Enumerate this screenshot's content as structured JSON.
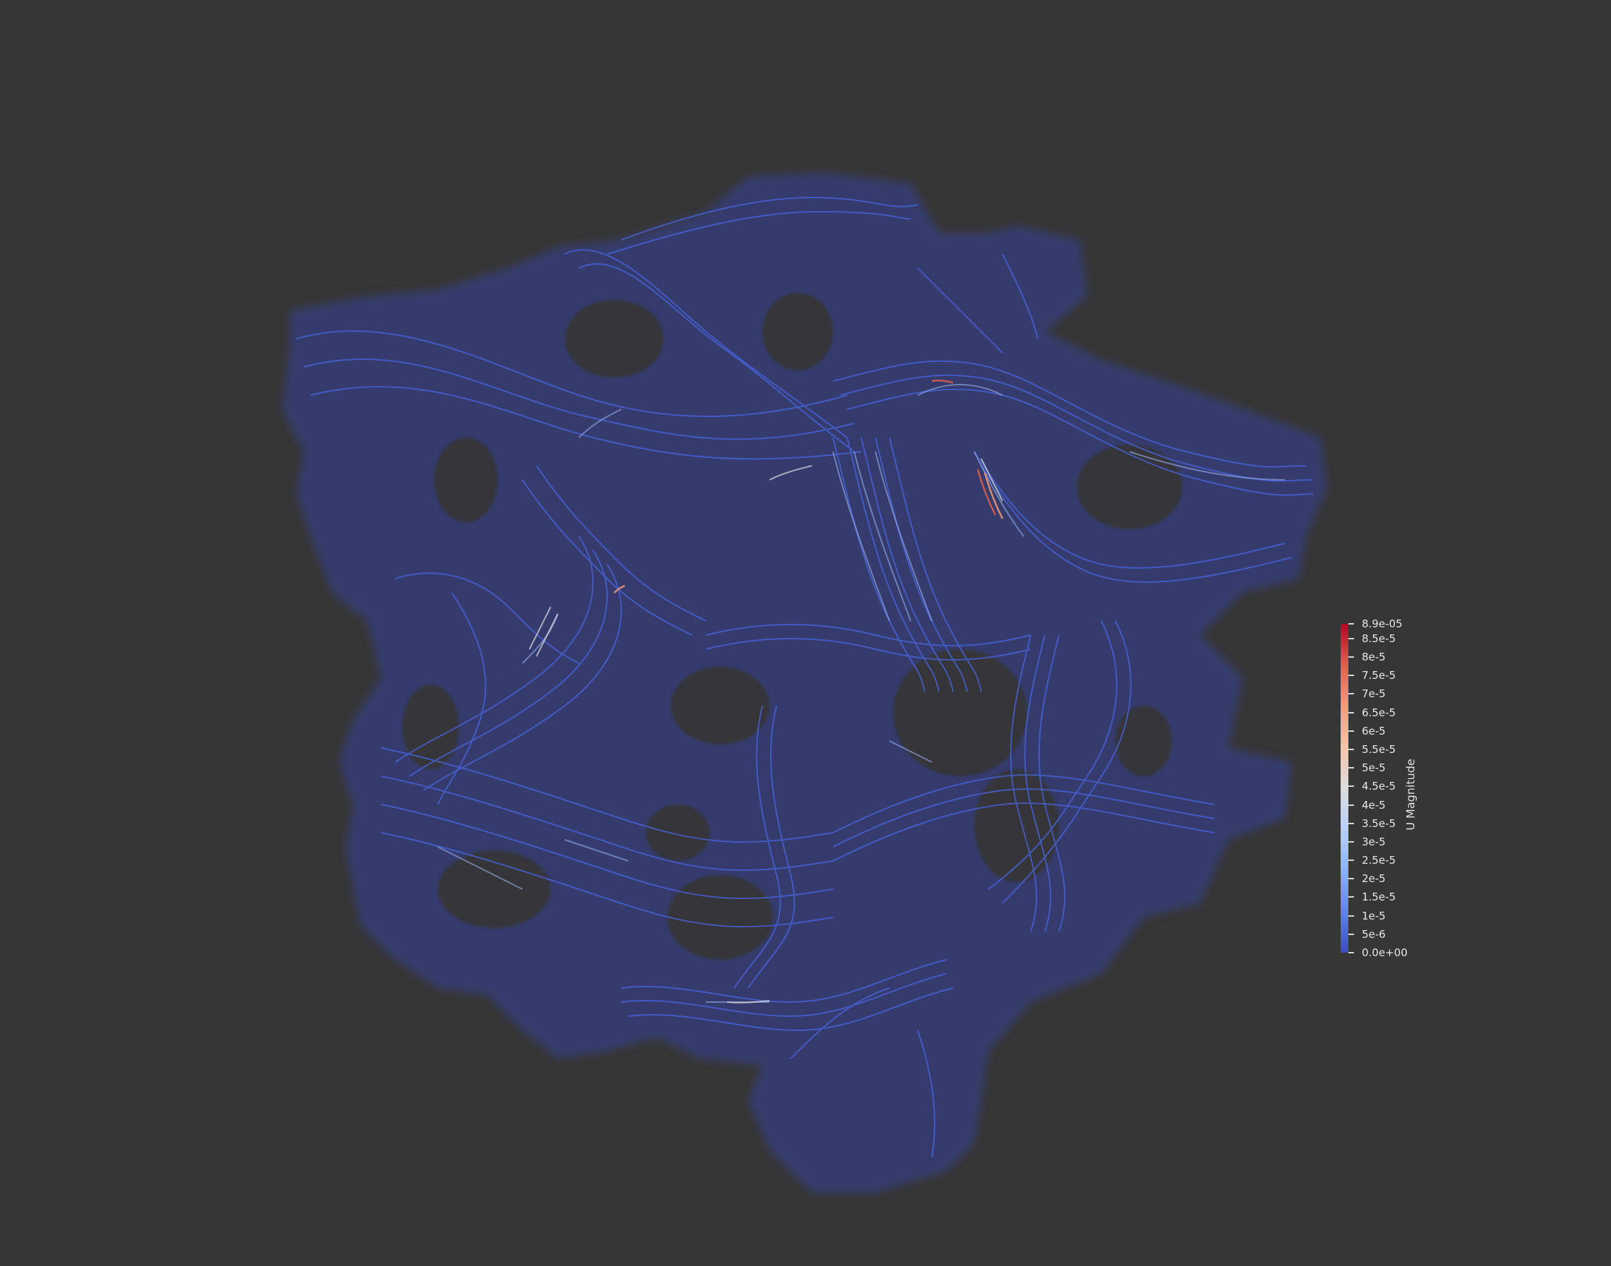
{
  "scene": {
    "background_color": "#363636",
    "surface_color": "#3a4aa8",
    "streamline_low_color": "#3b4cc0",
    "streamline_mid_color": "#dddddd",
    "streamline_high_color": "#b40426"
  },
  "colorbar": {
    "title": "U Magnitude",
    "colormap": [
      "#3b4cc0",
      "#6282ea",
      "#8db0fe",
      "#b8d0f9",
      "#dddddd",
      "#f5c4ac",
      "#f49a7b",
      "#de604d",
      "#b40426"
    ],
    "range": [
      0,
      8.9e-05
    ],
    "ticks": [
      {
        "value": 8.9e-05,
        "label": "8.9e-05"
      },
      {
        "value": 8.5e-05,
        "label": "8.5e-5"
      },
      {
        "value": 8e-05,
        "label": "8e-5"
      },
      {
        "value": 7.5e-05,
        "label": "7.5e-5"
      },
      {
        "value": 7e-05,
        "label": "7e-5"
      },
      {
        "value": 6.5e-05,
        "label": "6.5e-5"
      },
      {
        "value": 6e-05,
        "label": "6e-5"
      },
      {
        "value": 5.5e-05,
        "label": "5.5e-5"
      },
      {
        "value": 5e-05,
        "label": "5e-5"
      },
      {
        "value": 4.5e-05,
        "label": "4.5e-5"
      },
      {
        "value": 4e-05,
        "label": "4e-5"
      },
      {
        "value": 3.5e-05,
        "label": "3.5e-5"
      },
      {
        "value": 3e-05,
        "label": "3e-5"
      },
      {
        "value": 2.5e-05,
        "label": "2.5e-5"
      },
      {
        "value": 2e-05,
        "label": "2e-5"
      },
      {
        "value": 1.5e-05,
        "label": "1.5e-5"
      },
      {
        "value": 1e-05,
        "label": "1e-5"
      },
      {
        "value": 5e-06,
        "label": "5e-6"
      },
      {
        "value": 0,
        "label": "0.0e+00"
      }
    ]
  }
}
